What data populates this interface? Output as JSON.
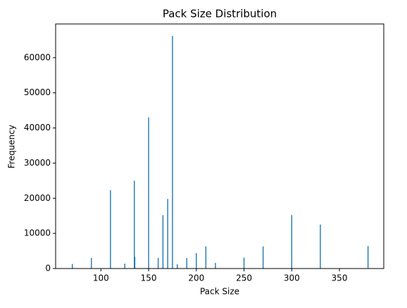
{
  "chart_data": {
    "type": "bar",
    "title": "Pack Size Distribution",
    "x_label": "Pack Size",
    "y_label": "Frequency",
    "x": [
      70,
      90,
      110,
      125,
      135,
      135.5,
      150,
      160,
      165,
      170,
      175,
      180,
      190,
      200,
      210,
      220,
      250,
      270,
      300,
      330,
      380
    ],
    "values": [
      1300,
      3000,
      22300,
      1400,
      25000,
      3300,
      43000,
      3000,
      15200,
      19800,
      66200,
      1200,
      3000,
      4400,
      6300,
      1600,
      3100,
      6300,
      15200,
      12500,
      6400
    ],
    "color": "#1f77b4",
    "xlim": [
      52.5,
      396.5
    ],
    "ylim": [
      0,
      69600
    ],
    "xticks": [
      100,
      150,
      200,
      250,
      300,
      350
    ],
    "yticks": [
      0,
      10000,
      20000,
      30000,
      40000,
      50000,
      60000
    ]
  }
}
